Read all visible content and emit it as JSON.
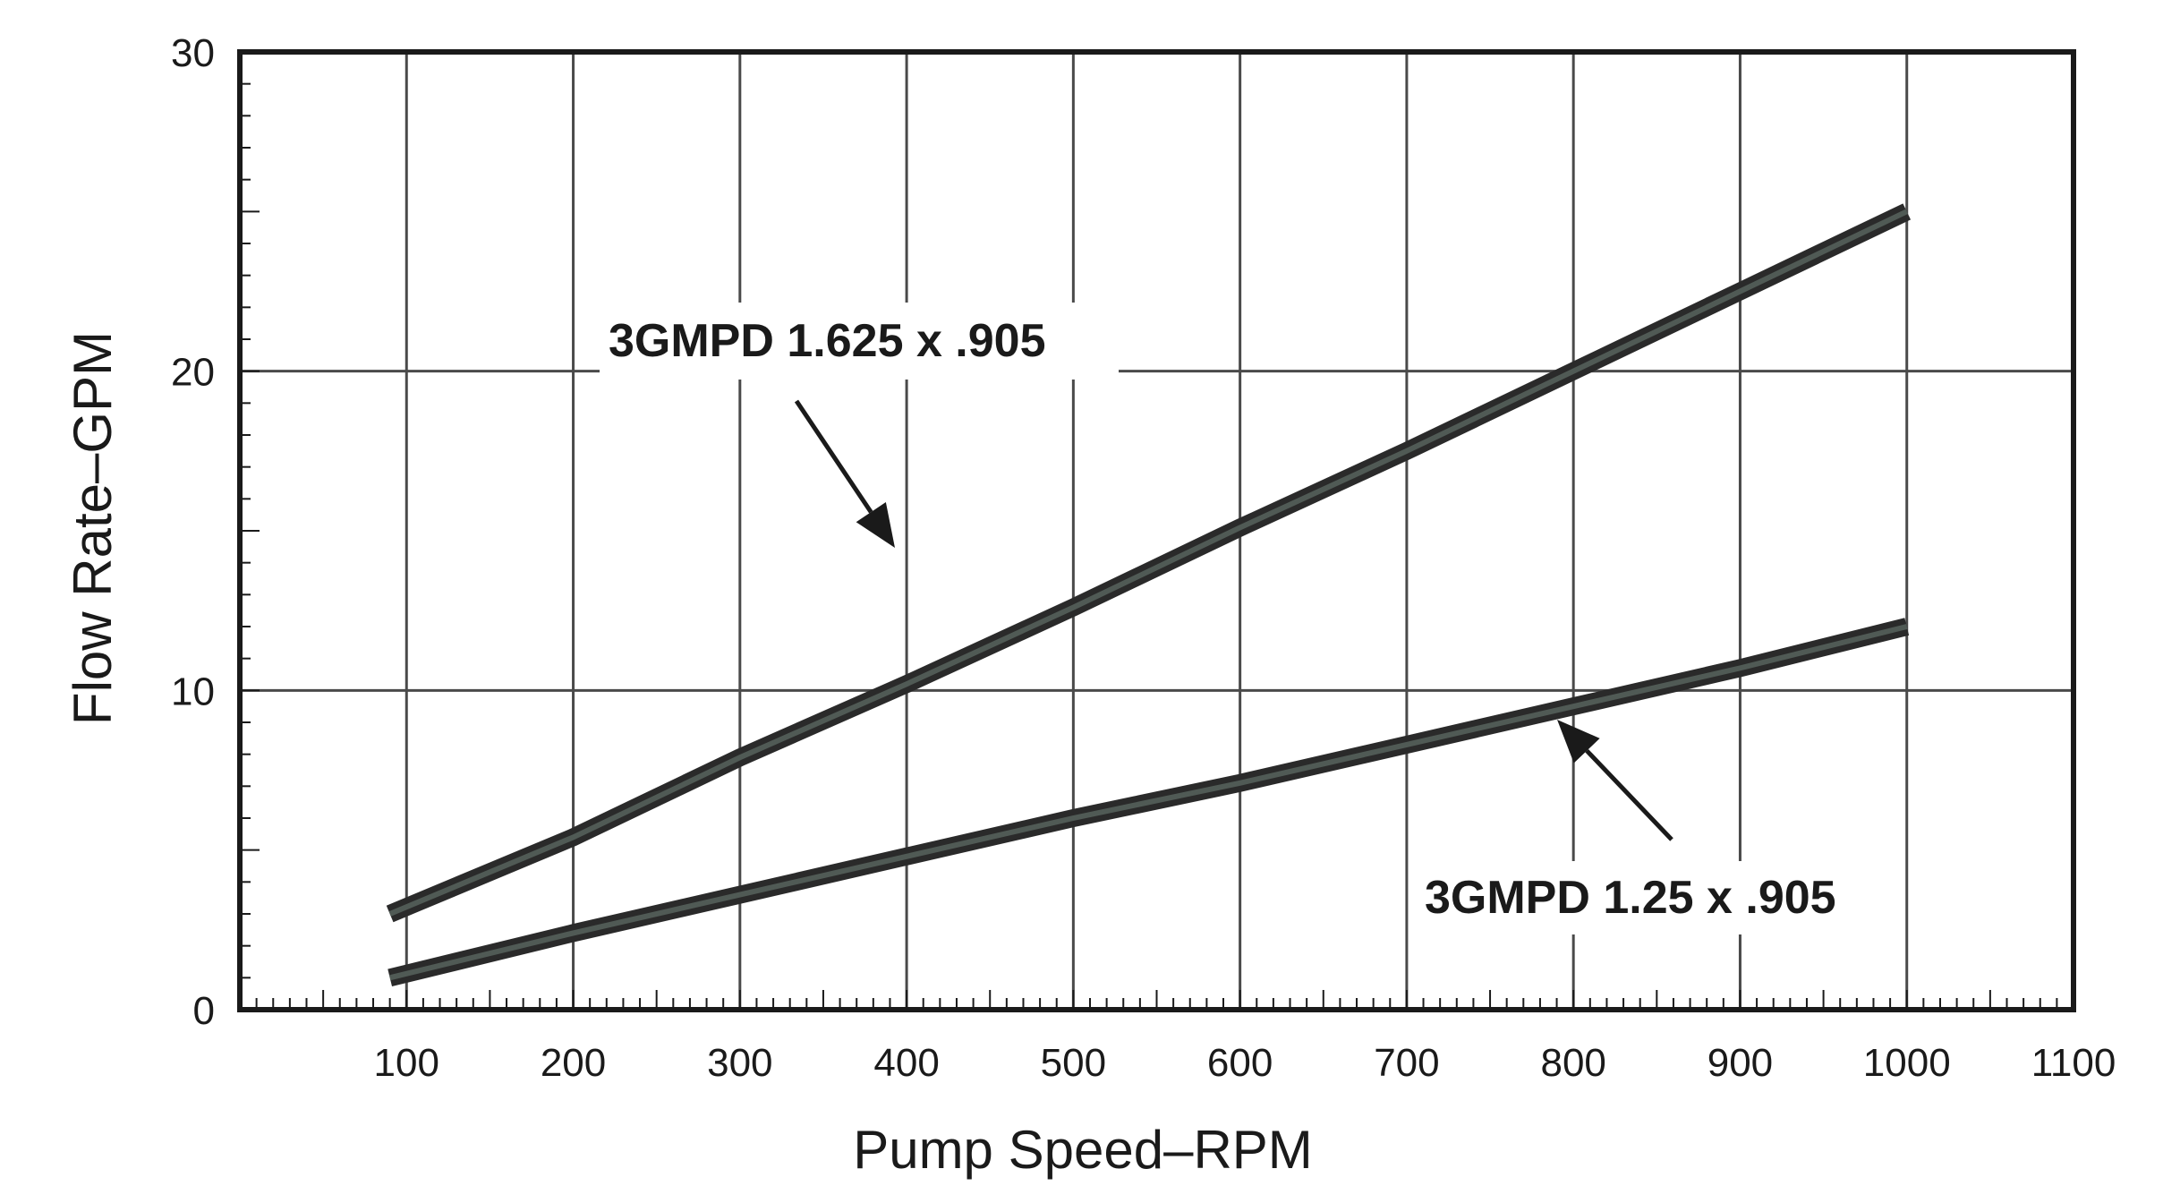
{
  "chart_data": {
    "type": "line",
    "title": "",
    "xlabel": "Pump Speed–RPM",
    "ylabel": "Flow Rate–GPM",
    "xlim": [
      0,
      1100
    ],
    "ylim": [
      0,
      30
    ],
    "x_ticks": [
      "100",
      "200",
      "300",
      "400",
      "500",
      "600",
      "700",
      "800",
      "900",
      "1000",
      "1100"
    ],
    "y_ticks": [
      "0",
      "10",
      "20",
      "30"
    ],
    "grid": true,
    "series": [
      {
        "name": "3GMPD 1.625 x .905",
        "x": [
          90,
          200,
          300,
          400,
          500,
          600,
          700,
          800,
          900,
          1000
        ],
        "y": [
          3.0,
          5.4,
          7.9,
          10.2,
          12.6,
          15.1,
          17.5,
          20.0,
          22.5,
          25.0
        ]
      },
      {
        "name": "3GMPD 1.25 x .905",
        "x": [
          90,
          200,
          300,
          400,
          500,
          600,
          700,
          800,
          900,
          1000
        ],
        "y": [
          1.0,
          2.4,
          3.6,
          4.8,
          6.0,
          7.1,
          8.3,
          9.5,
          10.7,
          12.0
        ]
      }
    ]
  }
}
